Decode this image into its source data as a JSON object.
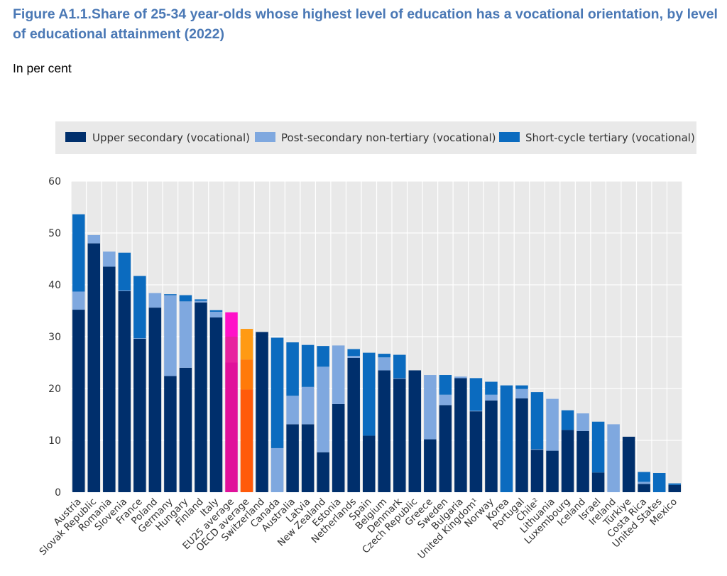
{
  "title": "Figure A1.1.Share of 25-34 year-olds whose highest level of education has a vocational orientation, by level of educational attainment (2022)",
  "subtitle": "In per cent",
  "colors": {
    "upper_secondary": "#002f6c",
    "post_secondary": "#7fa8df",
    "short_cycle": "#0b6bbf",
    "eu_dark": "#e0119b",
    "eu_mid": "#e7229f",
    "eu_light": "#ff12c8",
    "oecd_dark": "#ff5a0a",
    "oecd_mid": "#ff7a0a",
    "oecd_light": "#ff9a14",
    "plot_bg": "#e9e9e9",
    "legend_bg": "#e9e9e9",
    "grid": "#ffffff"
  },
  "chart_data": {
    "type": "bar",
    "stacked": true,
    "grid": true,
    "legend_position": "top",
    "ylim": [
      0,
      60
    ],
    "yticks": [
      0,
      10,
      20,
      30,
      40,
      50,
      60
    ],
    "categories": [
      "Austria",
      "Slovak Republic",
      "Romania",
      "Slovenia",
      "France",
      "Poland",
      "Germany",
      "Hungary",
      "Finland",
      "Italy",
      "EU25 average",
      "OECD average",
      "Switzerland",
      "Canada",
      "Australia",
      "Latvia",
      "New Zealand",
      "Estonia",
      "Netherlands",
      "Spain",
      "Belgium",
      "Denmark",
      "Czech Republic",
      "Greece",
      "Sweden",
      "Bulgaria",
      "United Kingdom¹",
      "Norway",
      "Korea",
      "Portugal",
      "Chile²",
      "Lithuania",
      "Luxembourg",
      "Iceland",
      "Israel",
      "Ireland",
      "Türkiye",
      "Costa Rica",
      "United States",
      "Mexico"
    ],
    "series": [
      {
        "name": "Upper secondary (vocational)",
        "values": [
          35.2,
          48.0,
          43.5,
          38.8,
          29.6,
          35.6,
          22.4,
          24.0,
          36.6,
          33.7,
          25.0,
          19.8,
          30.9,
          0.0,
          13.1,
          13.1,
          7.7,
          17.0,
          25.9,
          10.9,
          23.5,
          21.9,
          23.5,
          10.2,
          16.8,
          22.0,
          15.6,
          17.7,
          0.0,
          18.1,
          8.2,
          8.0,
          12.0,
          11.8,
          3.8,
          0.0,
          10.7,
          1.6,
          0.0,
          1.4
        ]
      },
      {
        "name": "Post-secondary non-tertiary (vocational)",
        "values": [
          3.5,
          1.6,
          2.9,
          0.1,
          0.1,
          2.8,
          15.6,
          12.8,
          0.3,
          1.1,
          5.0,
          5.8,
          0.0,
          8.5,
          5.5,
          7.2,
          16.5,
          11.3,
          0.4,
          0.0,
          2.5,
          0.1,
          0.0,
          12.4,
          2.0,
          0.3,
          0.1,
          1.1,
          0.0,
          1.8,
          0.1,
          10.0,
          0.0,
          3.4,
          0.0,
          13.1,
          0.0,
          0.4,
          0.0,
          0.0
        ]
      },
      {
        "name": "Short-cycle tertiary (vocational)",
        "values": [
          14.9,
          0.0,
          0.0,
          7.3,
          12.0,
          0.0,
          0.2,
          1.2,
          0.3,
          0.3,
          4.7,
          5.9,
          0.0,
          21.3,
          10.3,
          8.1,
          4.0,
          0.0,
          1.3,
          16.0,
          0.7,
          4.5,
          0.0,
          0.0,
          3.8,
          0.0,
          6.3,
          2.5,
          20.6,
          0.7,
          11.0,
          0.0,
          3.8,
          0.0,
          9.8,
          0.0,
          0.0,
          1.9,
          3.7,
          0.3
        ]
      }
    ]
  }
}
